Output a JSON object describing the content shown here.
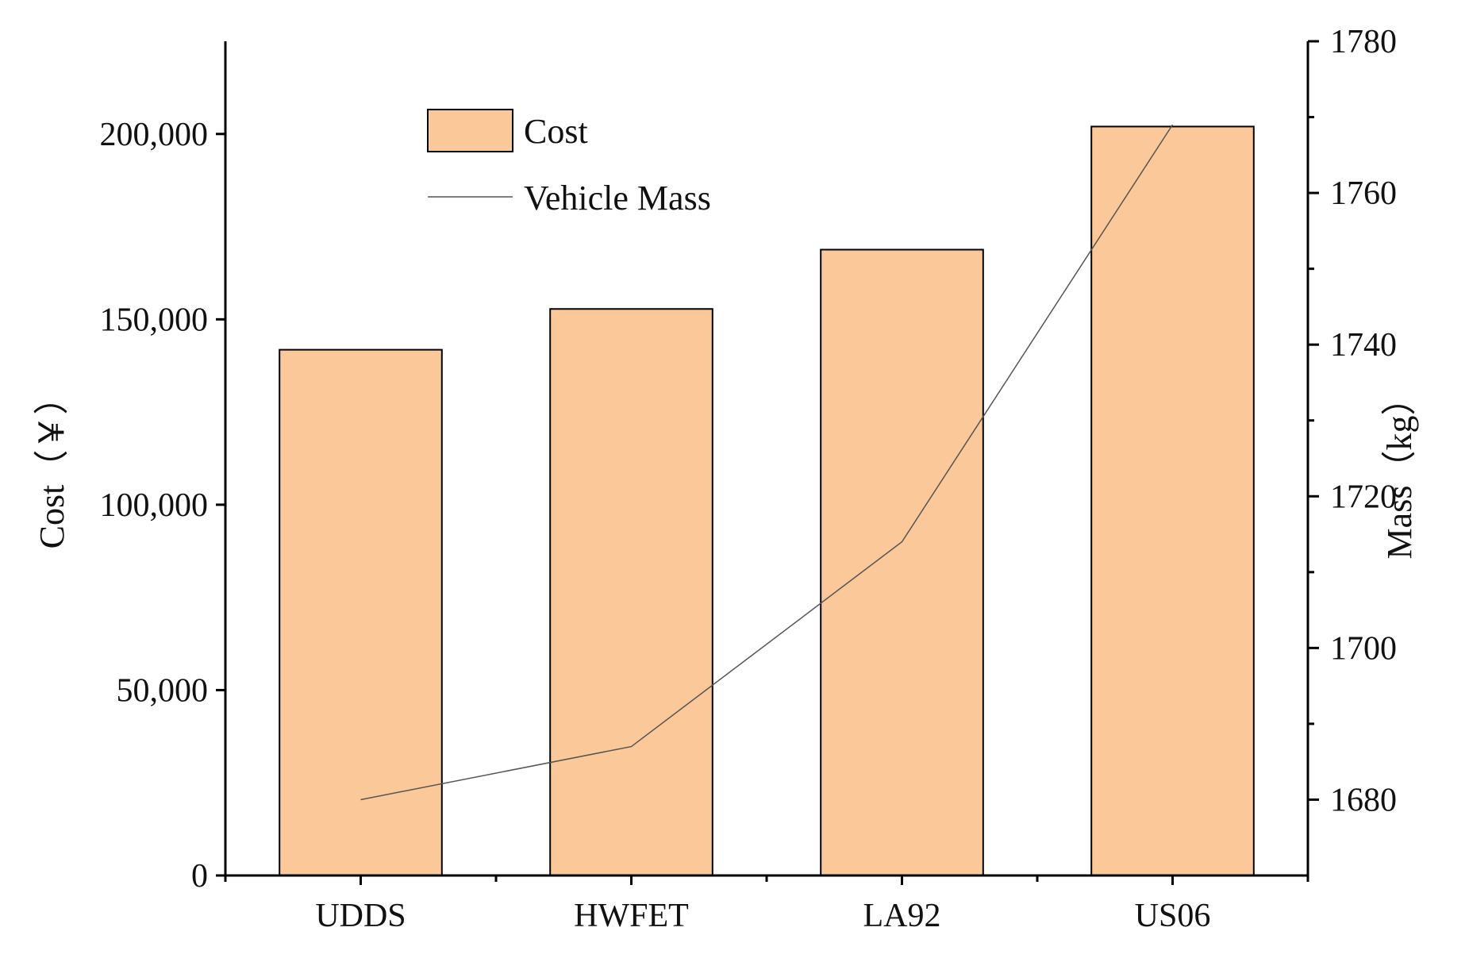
{
  "chart_data": {
    "type": "bar",
    "categories": [
      "UDDS",
      "HWFET",
      "LA92",
      "US06"
    ],
    "series": [
      {
        "name": "Cost",
        "type": "bar",
        "axis": "left",
        "color": "#FBC899",
        "values": [
          141800,
          152800,
          168800,
          202000
        ]
      },
      {
        "name": "Vehicle Mass",
        "type": "line",
        "axis": "right",
        "color": "#555555",
        "values": [
          1680,
          1687,
          1714,
          1769
        ]
      }
    ],
    "y_left": {
      "label": "Cost（￥）",
      "lim": [
        0,
        225000
      ],
      "ticks": [
        0,
        50000,
        100000,
        150000,
        200000
      ],
      "tick_labels": [
        "0",
        "50,000",
        "100,000",
        "150,000",
        "200,000"
      ]
    },
    "y_right": {
      "label": "Mass（kg）",
      "lim": [
        1670,
        1780
      ],
      "ticks": [
        1680,
        1700,
        1720,
        1740,
        1760,
        1780
      ],
      "tick_labels": [
        "1680",
        "1700",
        "1720",
        "1740",
        "1760",
        "1780"
      ],
      "minor_ticks": [
        1690,
        1710,
        1730,
        1750,
        1770
      ]
    },
    "legend": {
      "position": "top-left",
      "entries": [
        "Cost",
        "Vehicle Mass"
      ]
    },
    "grid": false
  }
}
